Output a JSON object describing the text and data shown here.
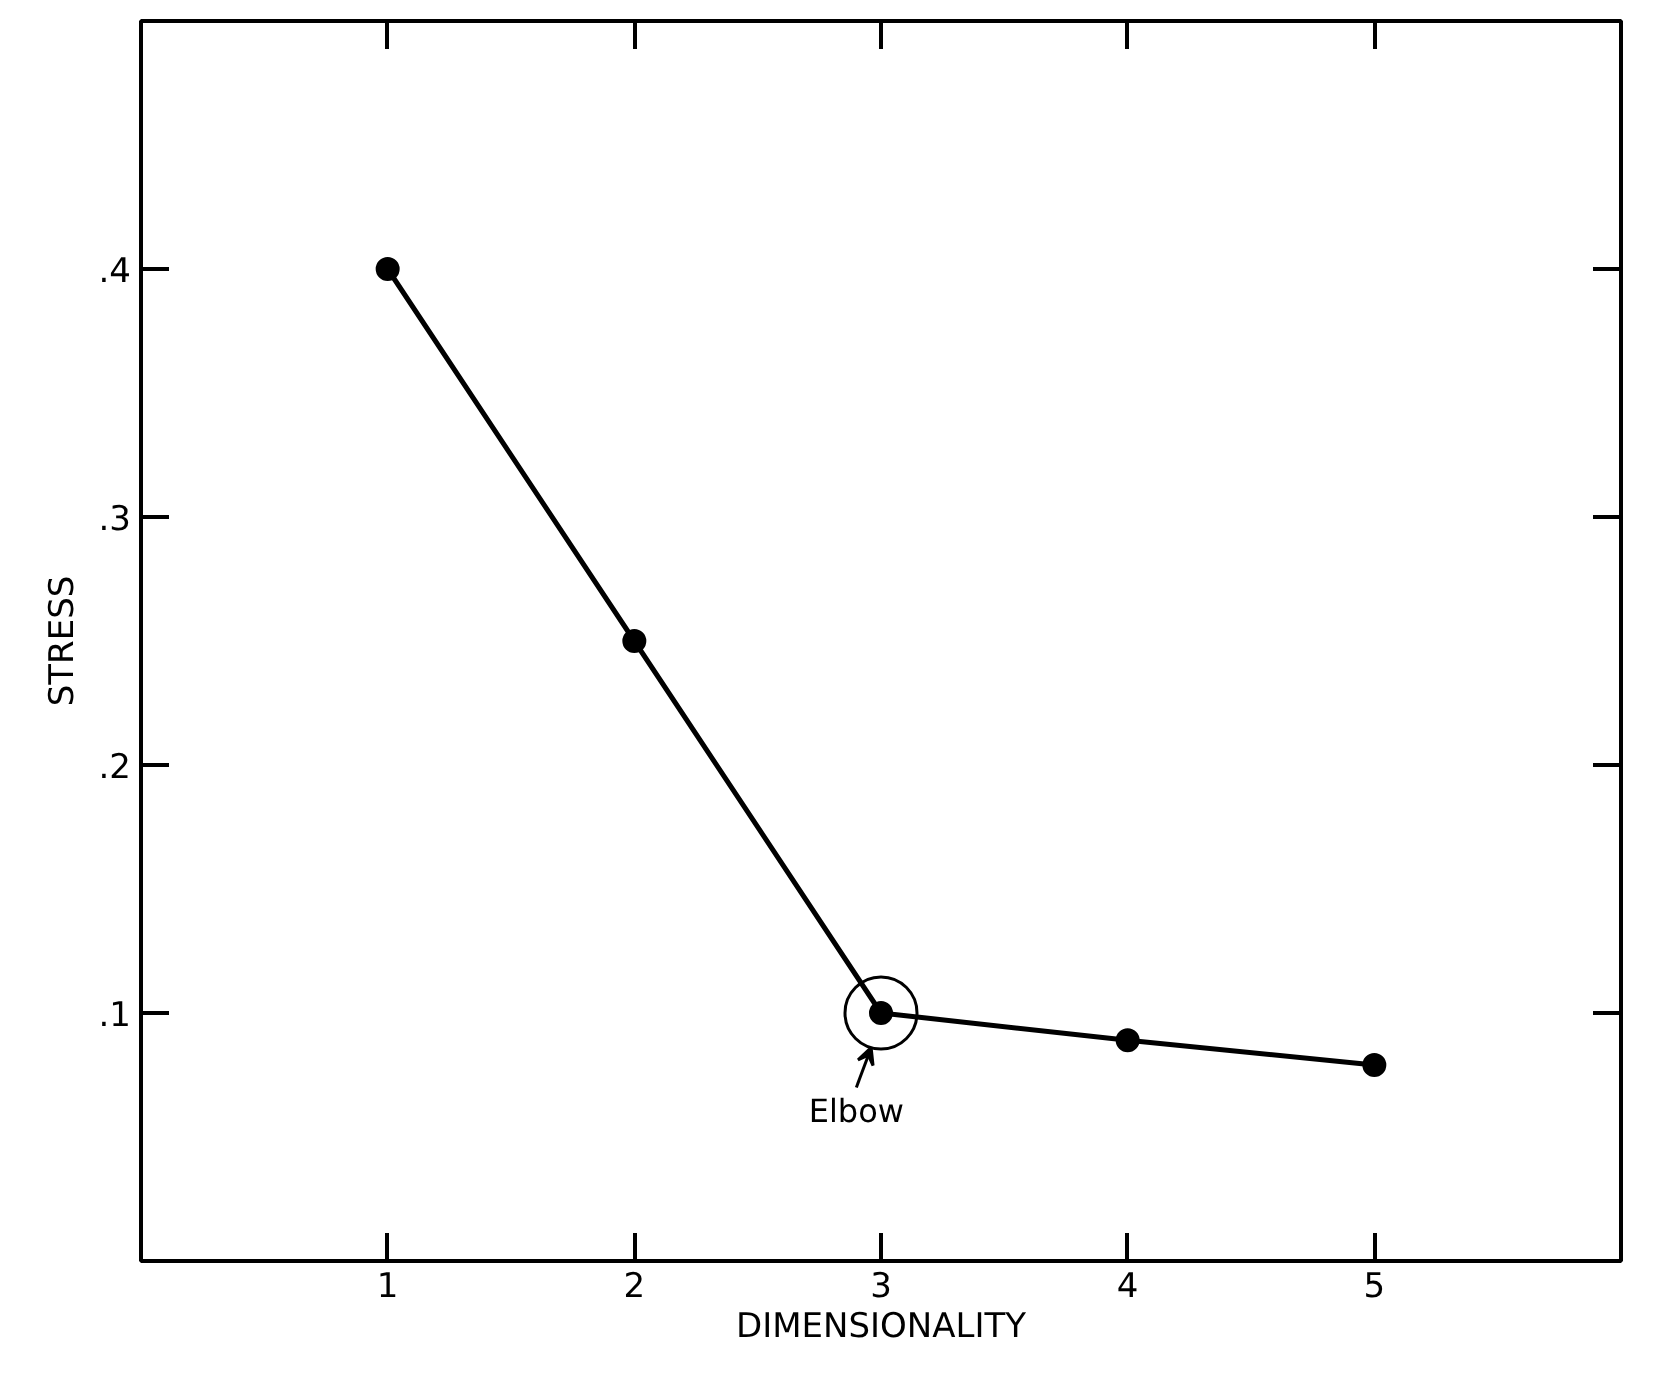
{
  "chart_data": {
    "type": "line",
    "xlabel": "DIMENSIONALITY",
    "ylabel": "STRESS",
    "x": [
      1,
      2,
      3,
      4,
      5
    ],
    "series": [
      {
        "color": "#000000",
        "values": [
          0.4,
          0.25,
          0.1,
          0.089,
          0.079
        ]
      }
    ],
    "xlim": [
      0,
      6
    ],
    "ylim": [
      0,
      0.5
    ],
    "xticks": [
      1,
      2,
      3,
      4,
      5
    ],
    "yticks": [
      {
        "value": 0.1,
        "label": ".1"
      },
      {
        "value": 0.2,
        "label": ".2"
      },
      {
        "value": 0.3,
        "label": ".3"
      },
      {
        "value": 0.4,
        "label": ".4"
      }
    ],
    "annotations": [
      {
        "text": "Elbow",
        "x": 3,
        "y": 0.1
      }
    ],
    "marker": "circle",
    "line_style": "solid"
  }
}
